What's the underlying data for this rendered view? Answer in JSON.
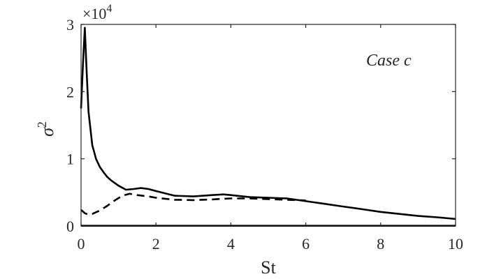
{
  "chart_data": {
    "type": "line",
    "title": "",
    "xlabel": "St",
    "ylabel": "σ²",
    "xlim": [
      0,
      10
    ],
    "ylim": [
      0,
      30000
    ],
    "xticks": [
      0,
      2,
      4,
      6,
      8,
      10
    ],
    "xtick_labels": [
      "0",
      "2",
      "4",
      "6",
      "8",
      "10"
    ],
    "yticks": [
      0,
      10000,
      20000,
      30000
    ],
    "ytick_labels": [
      "0",
      "1",
      "2",
      "3"
    ],
    "y_multiplier_label": "×10^4",
    "annotation": "Case c",
    "grid": false,
    "legend": "none",
    "series": [
      {
        "style": "solid",
        "color": "#000000",
        "x": [
          0.0,
          0.05,
          0.1,
          0.15,
          0.2,
          0.25,
          0.3,
          0.35,
          0.4,
          0.5,
          0.6,
          0.7,
          0.8,
          0.9,
          1.0,
          1.2,
          1.4,
          1.6,
          1.8,
          2.0,
          2.5,
          3.0,
          3.5,
          3.8,
          4.0,
          4.5,
          5.0,
          5.5,
          6.0,
          6.5,
          7.0,
          7.5,
          8.0,
          8.5,
          9.0,
          9.5,
          10.0
        ],
        "y": [
          17500,
          24000,
          29500,
          23000,
          17000,
          14500,
          12000,
          11000,
          10000,
          8800,
          8000,
          7300,
          6800,
          6400,
          6000,
          5400,
          5500,
          5650,
          5500,
          5200,
          4500,
          4400,
          4600,
          4700,
          4600,
          4300,
          4200,
          4100,
          3700,
          3300,
          2900,
          2500,
          2100,
          1800,
          1500,
          1300,
          1050
        ]
      },
      {
        "style": "dashed",
        "color": "#000000",
        "x": [
          0.0,
          0.1,
          0.2,
          0.3,
          0.5,
          0.7,
          0.9,
          1.1,
          1.3,
          1.5,
          1.8,
          2.0,
          2.5,
          3.0,
          3.5,
          4.0,
          4.5,
          5.0,
          5.5,
          6.0
        ],
        "y": [
          2400,
          1900,
          1700,
          1800,
          2300,
          3000,
          3800,
          4500,
          4800,
          4600,
          4400,
          4200,
          3900,
          3850,
          3950,
          4100,
          4100,
          4000,
          3900,
          3800
        ]
      },
      {
        "style": "solid",
        "color": "#000000",
        "x": [
          0,
          2,
          4,
          6,
          8,
          10
        ],
        "y": [
          30,
          30,
          30,
          30,
          30,
          30
        ]
      }
    ]
  }
}
